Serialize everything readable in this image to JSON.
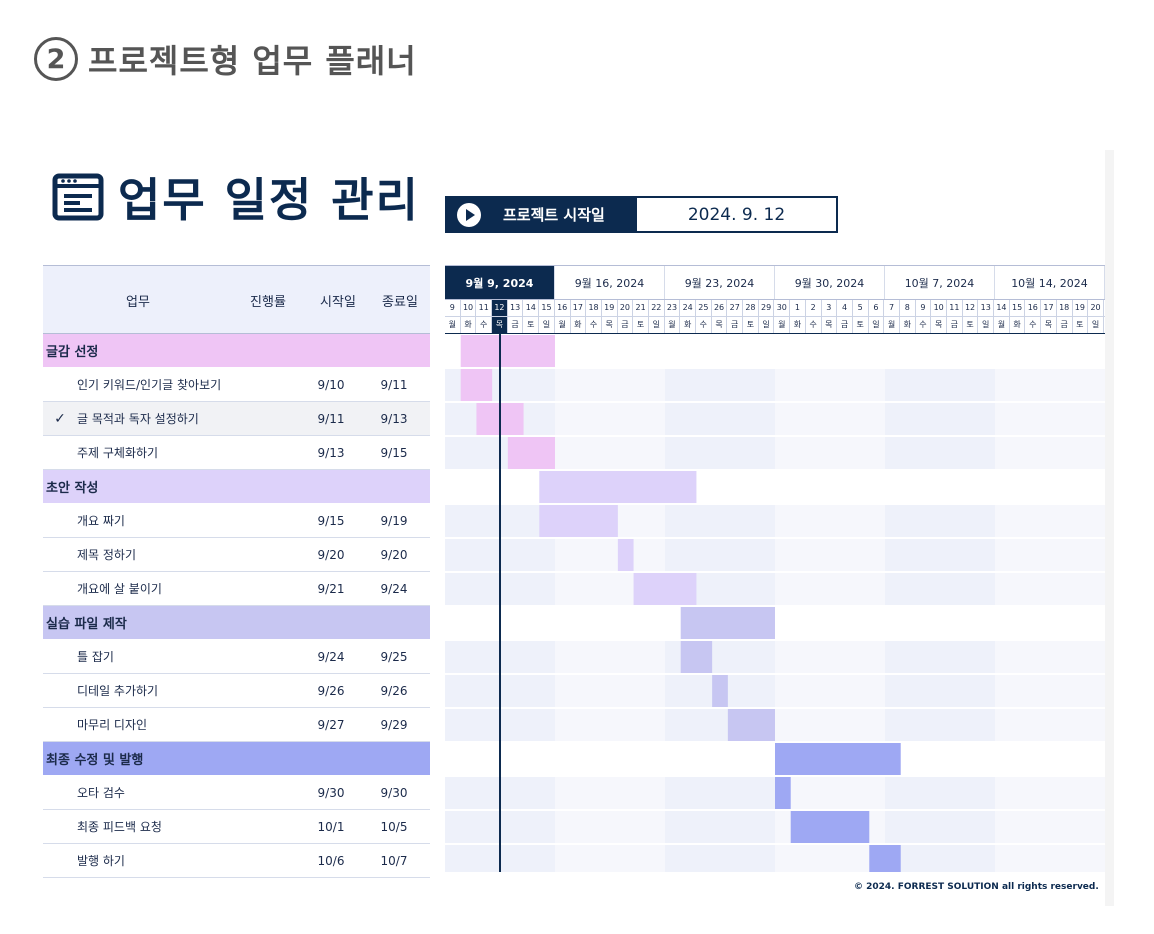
{
  "heading": {
    "number": "2",
    "title": "프로젝트형 업무 플래너"
  },
  "title": "업무 일정 관리",
  "start": {
    "label": "프로젝트 시작일",
    "date": "2024. 9. 12"
  },
  "columns": {
    "task": "업무",
    "progress": "진행률",
    "start": "시작일",
    "end": "종료일"
  },
  "weeks": [
    "9월 9, 2024",
    "9월 16, 2024",
    "9월 23, 2024",
    "9월 30, 2024",
    "10월 7, 2024",
    "10월 14, 2024"
  ],
  "day_numbers": [
    "9",
    "10",
    "11",
    "12",
    "13",
    "14",
    "15",
    "16",
    "17",
    "18",
    "19",
    "20",
    "21",
    "22",
    "23",
    "24",
    "25",
    "26",
    "27",
    "28",
    "29",
    "30",
    "1",
    "2",
    "3",
    "4",
    "5",
    "6",
    "7",
    "8",
    "9",
    "10",
    "11",
    "12",
    "13",
    "14",
    "15",
    "16",
    "17",
    "18",
    "19",
    "20"
  ],
  "weekdays": [
    "월",
    "화",
    "수",
    "목",
    "금",
    "토",
    "일"
  ],
  "colors": {
    "navy": "#0c2a4f",
    "g1": "#efc5f5",
    "g2": "#ddd2fa",
    "g3": "#c7c6f2",
    "g4": "#9ea8f3"
  },
  "groups": [
    {
      "name": "글감 선정",
      "color": "#efc5f5",
      "start": "9/10",
      "end": "9/15",
      "tasks": [
        {
          "name": "인기 키워드/인기글 찾아보기",
          "start": "9/10",
          "end": "9/11",
          "done": ""
        },
        {
          "name": "글 목적과 독자 설정하기",
          "start": "9/11",
          "end": "9/13",
          "done": "✓"
        },
        {
          "name": "주제 구체화하기",
          "start": "9/13",
          "end": "9/15",
          "done": ""
        }
      ]
    },
    {
      "name": "초안 작성",
      "color": "#ddd2fa",
      "start": "9/15",
      "end": "9/24",
      "tasks": [
        {
          "name": "개요 짜기",
          "start": "9/15",
          "end": "9/19",
          "done": ""
        },
        {
          "name": "제목 정하기",
          "start": "9/20",
          "end": "9/20",
          "done": ""
        },
        {
          "name": "개요에 살 붙이기",
          "start": "9/21",
          "end": "9/24",
          "done": ""
        }
      ]
    },
    {
      "name": "실습 파일 제작",
      "color": "#c7c6f2",
      "start": "9/24",
      "end": "9/29",
      "tasks": [
        {
          "name": "틀 잡기",
          "start": "9/24",
          "end": "9/25",
          "done": ""
        },
        {
          "name": "디테일 추가하기",
          "start": "9/26",
          "end": "9/26",
          "done": ""
        },
        {
          "name": "마무리 디자인",
          "start": "9/27",
          "end": "9/29",
          "done": ""
        }
      ]
    },
    {
      "name": "최종 수정 및 발행",
      "color": "#9ea8f3",
      "start": "9/30",
      "end": "10/7",
      "tasks": [
        {
          "name": "오타 검수",
          "start": "9/30",
          "end": "9/30",
          "done": ""
        },
        {
          "name": "최종 피드백 요청",
          "start": "10/1",
          "end": "10/5",
          "done": ""
        },
        {
          "name": "발행 하기",
          "start": "10/6",
          "end": "10/7",
          "done": ""
        }
      ]
    }
  ],
  "footer": "© 2024. FORREST SOLUTION all rights reserved."
}
